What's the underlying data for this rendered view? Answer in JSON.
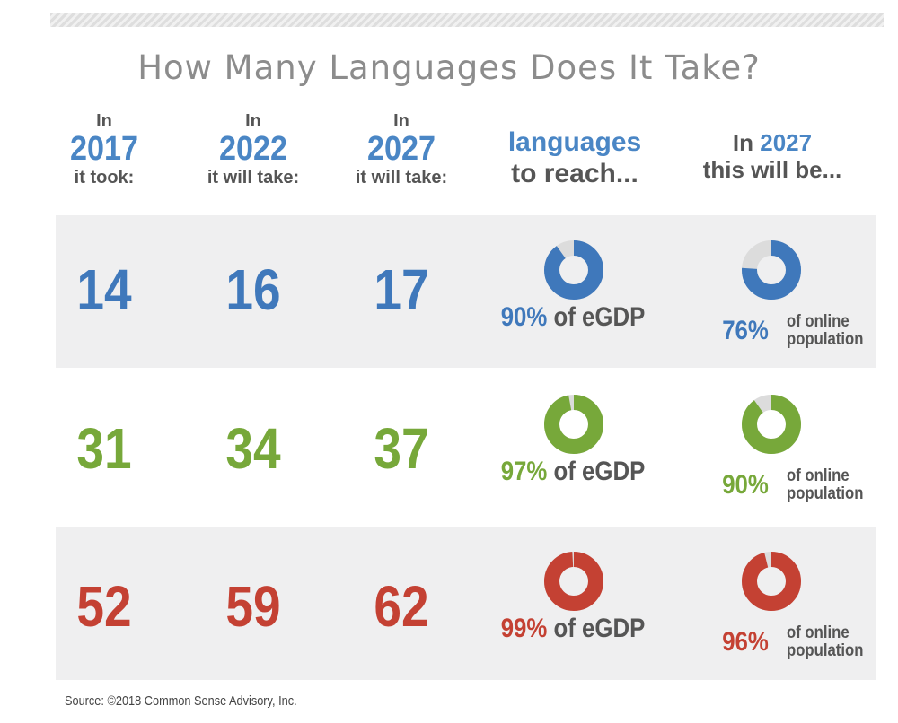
{
  "colors": {
    "blue": "#3f78bb",
    "green": "#77a83a",
    "red": "#c44133",
    "track": "#dcdcdc",
    "text": "#555555"
  },
  "chart_data": {
    "type": "table",
    "title": "How Many Languages Does It Take?",
    "headers": [
      {
        "top": "In",
        "year": "2017",
        "bottom": "it took:"
      },
      {
        "top": "In",
        "year": "2022",
        "bottom": "it will take:"
      },
      {
        "top": "In",
        "year": "2027",
        "bottom": "it will take:"
      },
      {
        "line1": "languages",
        "line2": "to reach..."
      },
      {
        "prefix": "In",
        "year": "2027",
        "line2": "this will be..."
      }
    ],
    "rows": [
      {
        "color": "#3f78bb",
        "values": [
          "14",
          "16",
          "17"
        ],
        "egdp_pct": 90,
        "egdp_label": "90%",
        "egdp_text": "of eGDP",
        "pop_pct": 76,
        "pop_label": "76%",
        "pop_text1": "of online",
        "pop_text2": "population"
      },
      {
        "color": "#77a83a",
        "values": [
          "31",
          "34",
          "37"
        ],
        "egdp_pct": 97,
        "egdp_label": "97%",
        "egdp_text": "of eGDP",
        "pop_pct": 90,
        "pop_label": "90%",
        "pop_text1": "of online",
        "pop_text2": "population"
      },
      {
        "color": "#c44133",
        "values": [
          "52",
          "59",
          "62"
        ],
        "egdp_pct": 99,
        "egdp_label": "99%",
        "egdp_text": "of eGDP",
        "pop_pct": 96,
        "pop_label": "96%",
        "pop_text1": "of online",
        "pop_text2": "population"
      }
    ],
    "source": "Source: ©2018 Common Sense Advisory, Inc."
  }
}
